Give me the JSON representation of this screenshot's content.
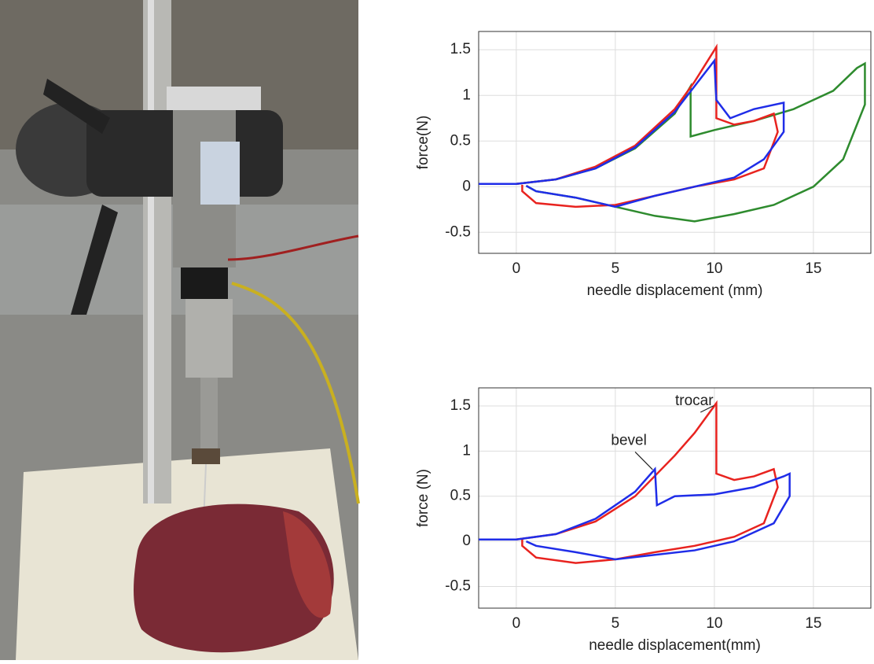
{
  "chart_data": [
    {
      "type": "line",
      "ylabel": "force(N)",
      "xlabel": "needle displacement (mm)",
      "xlim": [
        -1.9,
        17.9
      ],
      "ylim": [
        -0.73,
        1.7
      ],
      "xticks": [
        0,
        5,
        10,
        15
      ],
      "yticks": [
        -0.5,
        0,
        0.5,
        1,
        1.5
      ],
      "grid": true,
      "series": [
        {
          "color": "#2e8b2e",
          "x": [
            -2,
            0,
            2,
            4,
            6,
            8,
            8.8,
            8.8,
            10,
            12,
            14,
            16,
            17.2,
            17.6,
            17.6,
            16.5,
            15,
            13,
            11,
            9,
            7,
            5,
            3,
            1,
            0.5
          ],
          "values": [
            0.03,
            0.03,
            0.08,
            0.2,
            0.42,
            0.8,
            1.1,
            0.55,
            0.62,
            0.72,
            0.85,
            1.05,
            1.3,
            1.35,
            0.9,
            0.3,
            0.0,
            -0.2,
            -0.3,
            -0.38,
            -0.32,
            -0.22,
            -0.12,
            -0.05,
            0.01
          ]
        },
        {
          "color": "#e8231f",
          "x": [
            -2,
            0,
            2,
            4,
            6,
            8,
            9,
            10.1,
            10.1,
            11,
            12,
            13,
            13.2,
            12.5,
            11,
            9,
            7,
            5,
            3,
            1,
            0.3,
            0.3
          ],
          "values": [
            0.03,
            0.03,
            0.08,
            0.22,
            0.45,
            0.85,
            1.15,
            1.53,
            0.75,
            0.68,
            0.72,
            0.8,
            0.6,
            0.2,
            0.08,
            0.0,
            -0.1,
            -0.2,
            -0.22,
            -0.18,
            -0.05,
            0.02
          ]
        },
        {
          "color": "#1f2de8",
          "x": [
            -2,
            0,
            2,
            4,
            6,
            8,
            9,
            10,
            10.1,
            10.8,
            12,
            13.5,
            13.5,
            12.5,
            11,
            9,
            7,
            5,
            3,
            1,
            0.5
          ],
          "values": [
            0.03,
            0.03,
            0.08,
            0.2,
            0.43,
            0.82,
            1.1,
            1.38,
            0.95,
            0.75,
            0.85,
            0.92,
            0.6,
            0.3,
            0.1,
            0.0,
            -0.1,
            -0.22,
            -0.12,
            -0.05,
            0.01
          ]
        }
      ]
    },
    {
      "type": "line",
      "ylabel": "force (N)",
      "xlabel": "needle displacement(mm)",
      "xlim": [
        -1.9,
        17.9
      ],
      "ylim": [
        -0.74,
        1.7
      ],
      "xticks": [
        0,
        5,
        10,
        15
      ],
      "yticks": [
        -0.5,
        0,
        0.5,
        1,
        1.5
      ],
      "grid": true,
      "annotations": [
        "trocar",
        "bevel"
      ],
      "series": [
        {
          "color": "#e8231f",
          "x": [
            -2,
            0,
            2,
            4,
            6,
            8,
            9,
            10.1,
            10.1,
            11,
            12,
            13,
            13.2,
            12.5,
            11,
            9,
            7,
            5,
            3,
            1,
            0.3,
            0.3
          ],
          "values": [
            0.02,
            0.02,
            0.08,
            0.22,
            0.5,
            0.95,
            1.2,
            1.53,
            0.75,
            0.68,
            0.72,
            0.8,
            0.6,
            0.2,
            0.05,
            -0.05,
            -0.12,
            -0.2,
            -0.24,
            -0.18,
            -0.05,
            0.02
          ]
        },
        {
          "color": "#1f2de8",
          "x": [
            -2,
            0,
            2,
            4,
            6,
            7,
            7.1,
            8,
            10,
            12,
            13.5,
            13.8,
            13.8,
            13,
            11,
            9,
            7,
            5,
            3,
            1,
            0.5
          ],
          "values": [
            0.02,
            0.02,
            0.08,
            0.25,
            0.55,
            0.8,
            0.4,
            0.5,
            0.52,
            0.6,
            0.72,
            0.75,
            0.5,
            0.2,
            0.0,
            -0.1,
            -0.15,
            -0.2,
            -0.12,
            -0.05,
            0.0
          ]
        }
      ]
    }
  ]
}
